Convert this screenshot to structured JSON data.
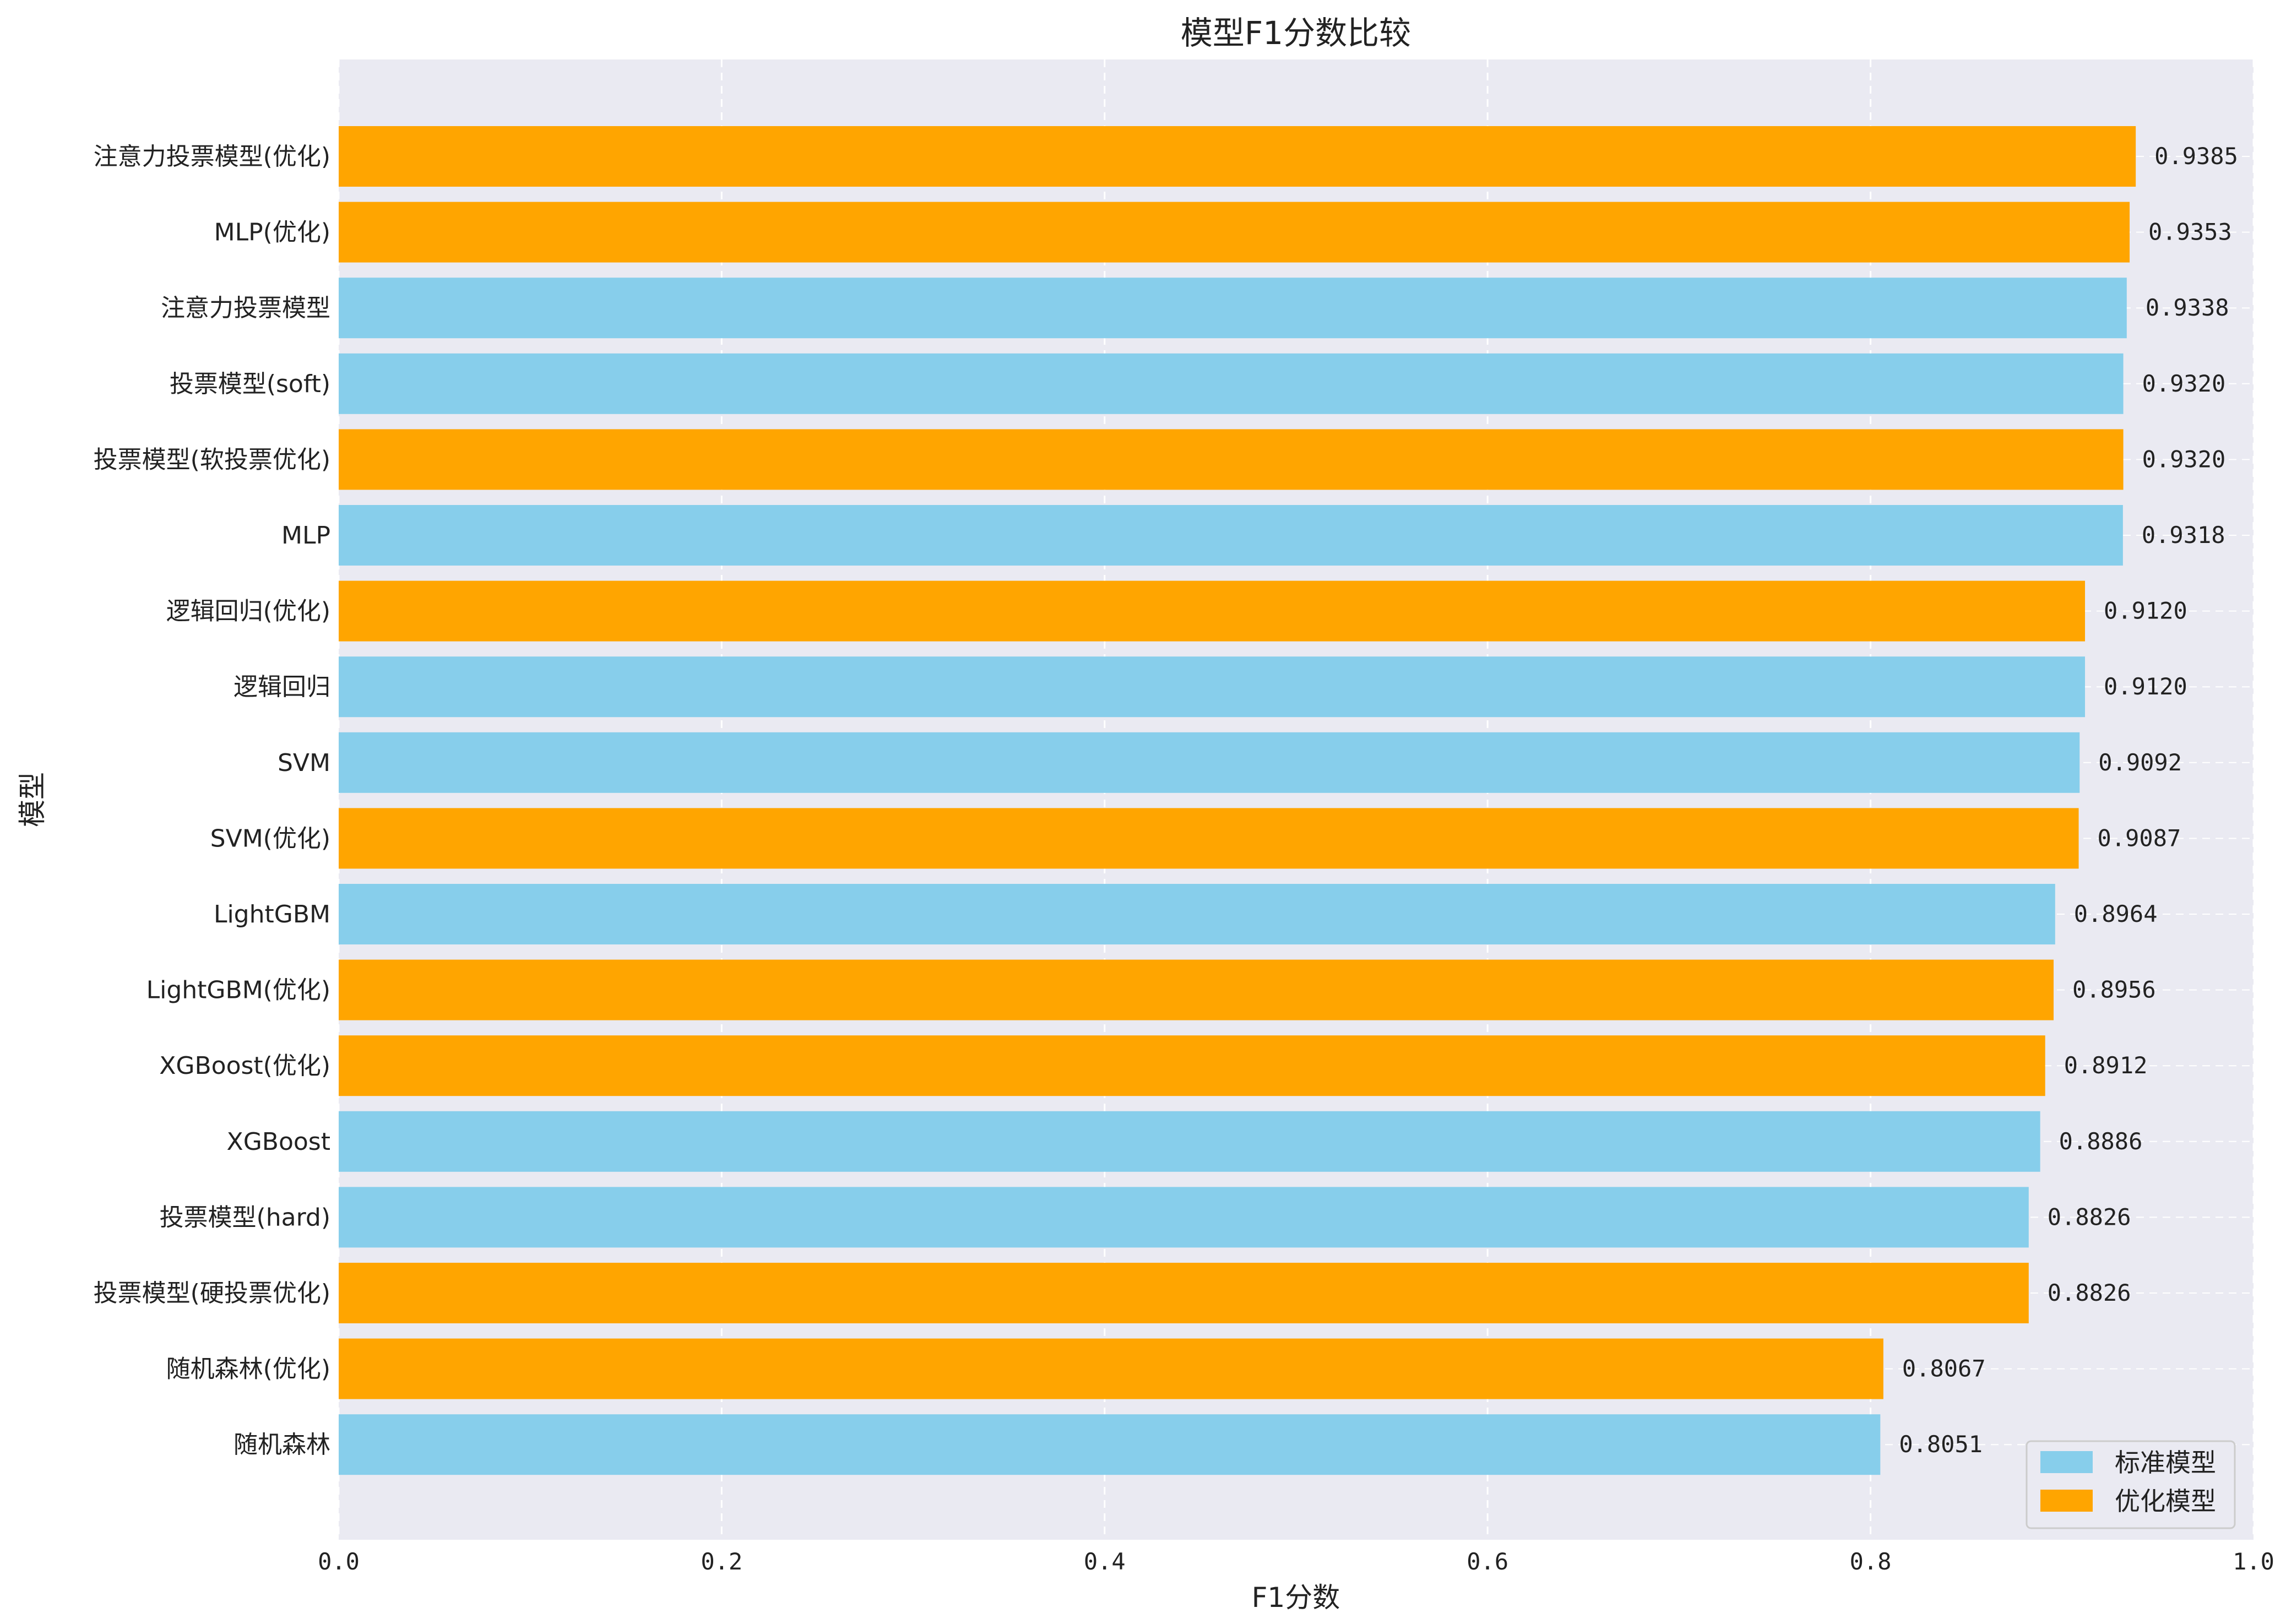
{
  "chart_data": {
    "type": "bar",
    "orientation": "horizontal",
    "title": "模型F1分数比较",
    "xlabel": "F1分数",
    "ylabel": "模型",
    "xlim": [
      0,
      1
    ],
    "xticks": [
      0,
      0.2,
      0.4,
      0.6,
      0.8,
      1
    ],
    "xtick_labels": [
      "0.0",
      "0.2",
      "0.4",
      "0.6",
      "0.8",
      "1.0"
    ],
    "grid": true,
    "legend_position": "bottom-right",
    "colors": {
      "standard": "#87CEEB",
      "optimized": "#FFA500",
      "background": "#EAEAF2"
    },
    "legend": [
      {
        "group": "standard",
        "label": "标准模型"
      },
      {
        "group": "optimized",
        "label": "优化模型"
      }
    ],
    "categories": [
      "注意力投票模型(优化)",
      "MLP(优化)",
      "注意力投票模型",
      "投票模型(soft)",
      "投票模型(软投票优化)",
      "MLP",
      "逻辑回归(优化)",
      "逻辑回归",
      "SVM",
      "SVM(优化)",
      "LightGBM",
      "LightGBM(优化)",
      "XGBoost(优化)",
      "XGBoost",
      "投票模型(hard)",
      "投票模型(硬投票优化)",
      "随机森林(优化)",
      "随机森林"
    ],
    "values": [
      0.9385,
      0.9353,
      0.9338,
      0.932,
      0.932,
      0.9318,
      0.912,
      0.912,
      0.9092,
      0.9087,
      0.8964,
      0.8956,
      0.8912,
      0.8886,
      0.8826,
      0.8826,
      0.8067,
      0.8051
    ],
    "value_labels": [
      "0.9385",
      "0.9353",
      "0.9338",
      "0.9320",
      "0.9320",
      "0.9318",
      "0.9120",
      "0.9120",
      "0.9092",
      "0.9087",
      "0.8964",
      "0.8956",
      "0.8912",
      "0.8886",
      "0.8826",
      "0.8826",
      "0.8067",
      "0.8051"
    ],
    "groups": [
      "optimized",
      "optimized",
      "standard",
      "standard",
      "optimized",
      "standard",
      "optimized",
      "standard",
      "standard",
      "optimized",
      "standard",
      "optimized",
      "optimized",
      "standard",
      "standard",
      "optimized",
      "optimized",
      "standard"
    ]
  }
}
